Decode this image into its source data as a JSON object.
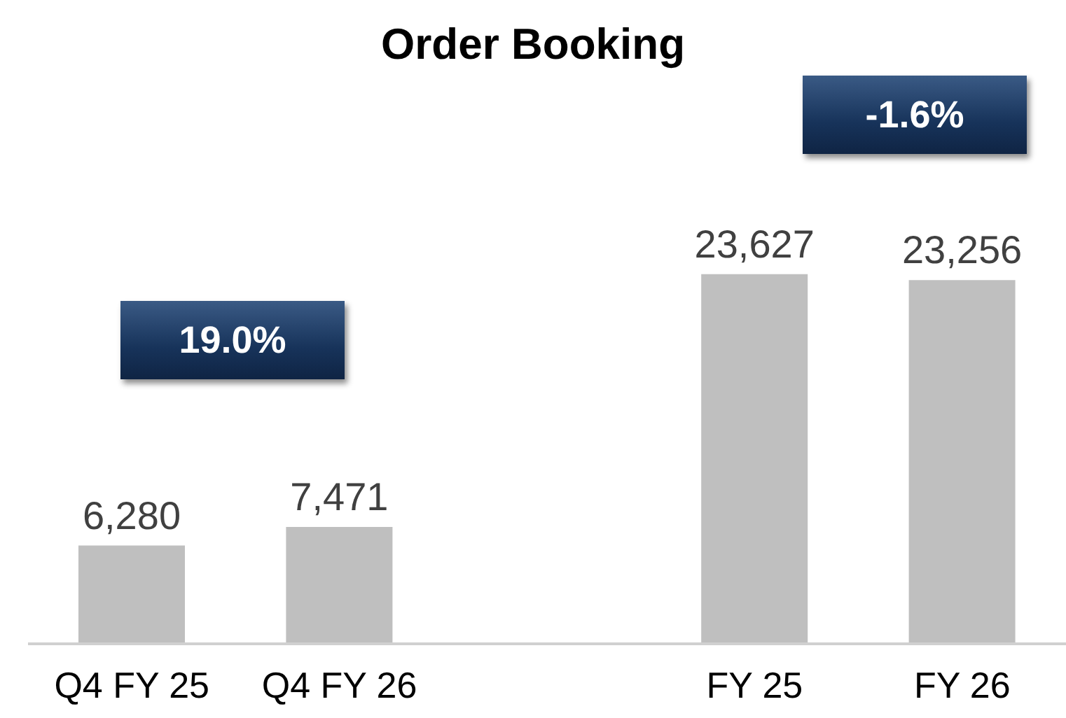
{
  "chart_data": {
    "type": "bar",
    "title": "Order Booking",
    "categories": [
      "Q4 FY 25",
      "Q4 FY 26",
      null,
      "FY 25",
      "FY 26"
    ],
    "values": [
      6280,
      7471,
      null,
      23627,
      23256
    ],
    "color": "#bfbfbf",
    "value_labels": [
      "6,280",
      "7,471",
      null,
      "23,627",
      "23,256"
    ],
    "annotations": [
      "19.0%",
      "-1.6%"
    ],
    "grid": false,
    "legend": false
  }
}
